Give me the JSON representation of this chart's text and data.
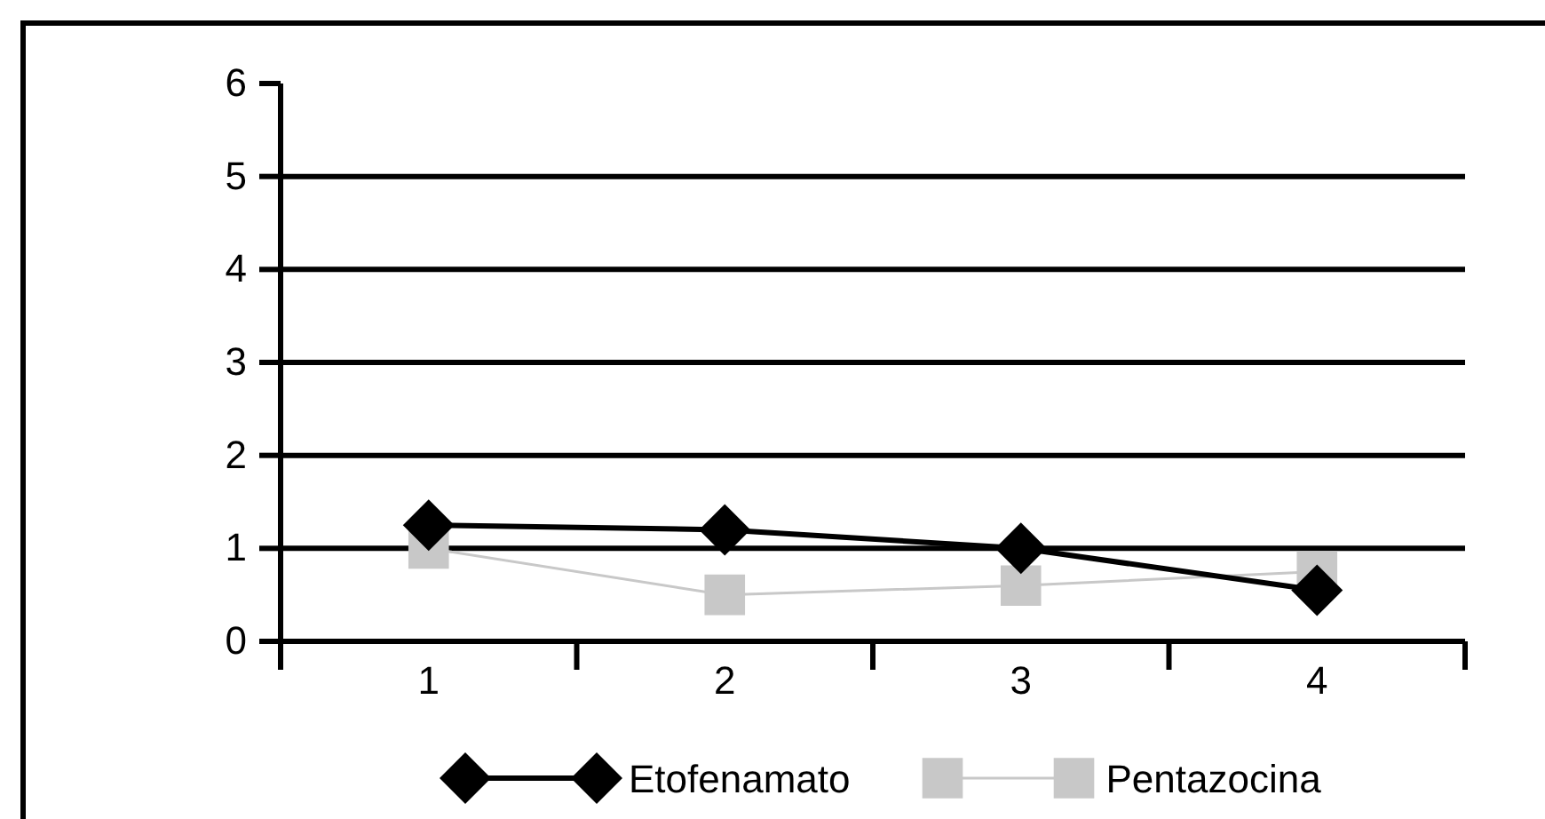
{
  "chart_data": {
    "type": "line",
    "categories": [
      "1",
      "2",
      "3",
      "4"
    ],
    "series": [
      {
        "name": "Etofenamato",
        "color": "#000000",
        "values": [
          1.25,
          1.2,
          1.0,
          0.55
        ],
        "marker": "diamond"
      },
      {
        "name": "Pentazocina",
        "color": "#c8c8c8",
        "values": [
          1.0,
          0.5,
          0.6,
          0.75
        ],
        "marker": "square"
      }
    ],
    "ylim": [
      0,
      6
    ],
    "yticks": [
      0,
      1,
      2,
      3,
      4,
      5,
      6
    ],
    "grid": "y",
    "legend": "bottom"
  }
}
